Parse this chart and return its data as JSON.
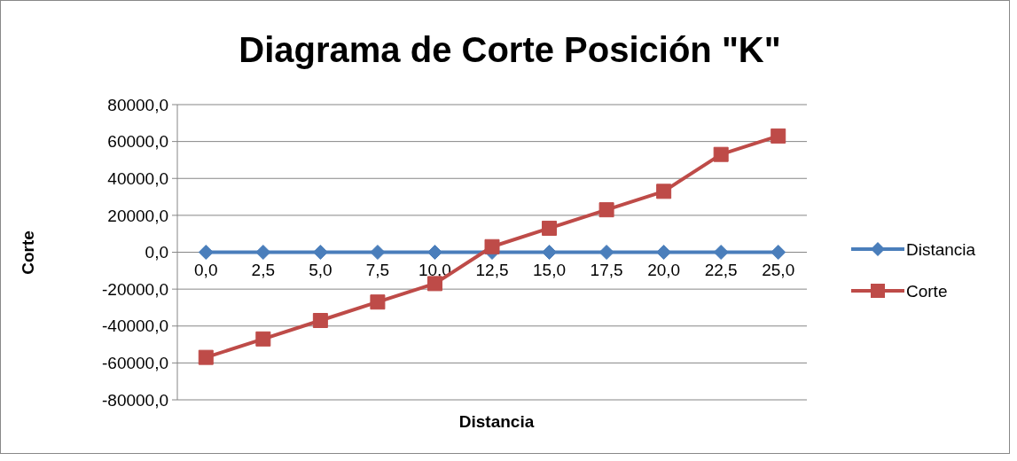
{
  "chart_data": {
    "type": "line",
    "title": "Diagrama de Corte Posición \"K\"",
    "xlabel": "Distancia",
    "ylabel": "Corte",
    "categories": [
      "0,0",
      "2,5",
      "5,0",
      "7,5",
      "10,0",
      "12,5",
      "15,0",
      "17,5",
      "20,0",
      "22,5",
      "25,0"
    ],
    "series": [
      {
        "name": "Distancia",
        "color": "#4a7ebb",
        "marker": "diamond",
        "values": [
          0,
          0,
          0,
          0,
          0,
          0,
          0,
          0,
          0,
          0,
          0
        ]
      },
      {
        "name": "Corte",
        "color": "#be4b48",
        "marker": "square",
        "values": [
          -57000,
          -47000,
          -37000,
          -27000,
          -17000,
          3000,
          13000,
          23000,
          33000,
          53000,
          63000
        ]
      }
    ],
    "ylim": [
      -80000,
      80000
    ],
    "yticks": [
      {
        "value": -80000,
        "label": "-80000,0"
      },
      {
        "value": -60000,
        "label": "-60000,0"
      },
      {
        "value": -40000,
        "label": "-40000,0"
      },
      {
        "value": -20000,
        "label": "-20000,0"
      },
      {
        "value": 0,
        "label": "0,0"
      },
      {
        "value": 20000,
        "label": "20000,0"
      },
      {
        "value": 40000,
        "label": "40000,0"
      },
      {
        "value": 60000,
        "label": "60000,0"
      },
      {
        "value": 80000,
        "label": "80000,0"
      }
    ],
    "grid": "y",
    "legend": "right",
    "line_style": "solid"
  }
}
